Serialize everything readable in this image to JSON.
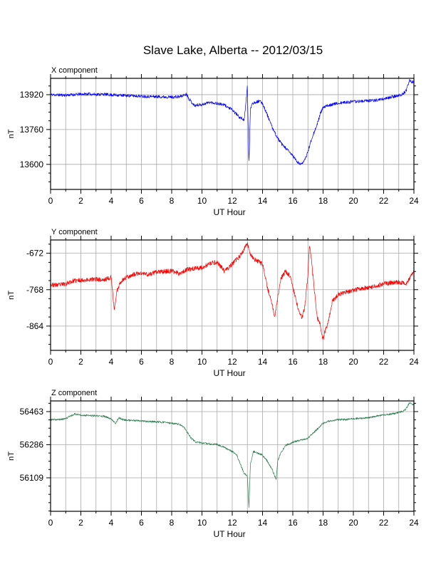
{
  "title": "Slave Lake, Alberta -- 2012/03/15",
  "chart_data": [
    {
      "type": "line",
      "panel_title": "X component",
      "xlabel": "UT Hour",
      "ylabel": "nT",
      "xlim": [
        0,
        24
      ],
      "ylim": [
        13485,
        13995
      ],
      "x_ticks": [
        0,
        2,
        4,
        6,
        8,
        10,
        12,
        14,
        16,
        18,
        20,
        22,
        24
      ],
      "y_ticks": [
        13600,
        13760,
        13920
      ],
      "grid": true,
      "color": "#0000ff",
      "noise": 7,
      "seed": 11,
      "x": [
        0,
        1,
        2,
        2.5,
        3,
        3.5,
        4,
        4.5,
        5,
        5.5,
        6,
        6.5,
        7,
        7.5,
        8,
        8.5,
        9,
        9.1,
        9.5,
        10,
        10.5,
        11,
        11.5,
        12,
        12.5,
        12.8,
        13,
        13.1,
        13.2,
        13.3,
        13.5,
        13.8,
        14,
        14.3,
        14.7,
        15,
        15.3,
        15.6,
        16,
        16.3,
        16.5,
        16.8,
        17,
        17.3,
        17.6,
        17.8,
        18,
        18.3,
        18.6,
        19,
        19.5,
        20,
        20.5,
        21,
        21.5,
        22,
        22.5,
        23,
        23.3,
        23.5,
        23.7,
        24
      ],
      "y": [
        13920,
        13918,
        13922,
        13923,
        13921,
        13922,
        13919,
        13918,
        13916,
        13915,
        13913,
        13912,
        13911,
        13910,
        13909,
        13910,
        13923,
        13905,
        13870,
        13875,
        13885,
        13880,
        13872,
        13850,
        13815,
        13805,
        13960,
        13600,
        13850,
        13880,
        13885,
        13890,
        13880,
        13830,
        13760,
        13720,
        13690,
        13670,
        13640,
        13610,
        13600,
        13620,
        13660,
        13730,
        13780,
        13830,
        13860,
        13870,
        13876,
        13880,
        13885,
        13888,
        13890,
        13892,
        13895,
        13900,
        13910,
        13915,
        13925,
        13940,
        13985,
        13975
      ]
    },
    {
      "type": "line",
      "panel_title": "Y component",
      "xlabel": "UT Hour",
      "ylabel": "nT",
      "xlim": [
        0,
        24
      ],
      "ylim": [
        -928,
        -637
      ],
      "x_ticks": [
        0,
        2,
        4,
        6,
        8,
        10,
        12,
        14,
        16,
        18,
        20,
        22,
        24
      ],
      "y_ticks": [
        -672,
        -768,
        -864
      ],
      "grid": true,
      "color": "#ff0000",
      "noise": 6,
      "seed": 23,
      "x": [
        0,
        0.5,
        1,
        1.5,
        2,
        2.5,
        3,
        3.5,
        4,
        4.2,
        4.4,
        4.6,
        5,
        5.5,
        6,
        6.5,
        7,
        7.5,
        8,
        8.5,
        9,
        9.5,
        10,
        10.5,
        11,
        11.5,
        12,
        12.5,
        12.8,
        13,
        13.2,
        13.5,
        14,
        14.3,
        14.6,
        14.8,
        15,
        15.2,
        15.5,
        15.8,
        16,
        16.3,
        16.6,
        16.8,
        17,
        17.1,
        17.2,
        17.4,
        17.6,
        17.8,
        18,
        18.1,
        18.3,
        18.6,
        19,
        19.5,
        20,
        20.5,
        21,
        21.5,
        22,
        22.5,
        23,
        23.5,
        24
      ],
      "y": [
        -755,
        -756,
        -752,
        -745,
        -743,
        -742,
        -740,
        -743,
        -735,
        -820,
        -770,
        -748,
        -735,
        -728,
        -725,
        -728,
        -722,
        -720,
        -719,
        -725,
        -715,
        -712,
        -710,
        -700,
        -695,
        -720,
        -700,
        -680,
        -660,
        -645,
        -675,
        -690,
        -700,
        -760,
        -800,
        -840,
        -790,
        -740,
        -720,
        -730,
        -760,
        -810,
        -845,
        -810,
        -730,
        -650,
        -680,
        -760,
        -840,
        -860,
        -900,
        -880,
        -860,
        -800,
        -780,
        -775,
        -770,
        -765,
        -762,
        -758,
        -752,
        -750,
        -748,
        -752,
        -715
      ]
    },
    {
      "type": "line",
      "panel_title": "Z component",
      "xlabel": "UT Hour",
      "ylabel": "nT",
      "xlim": [
        0,
        24
      ],
      "ylim": [
        55930,
        56520
      ],
      "x_ticks": [
        0,
        2,
        4,
        6,
        8,
        10,
        12,
        14,
        16,
        18,
        20,
        22,
        24
      ],
      "y_ticks": [
        56109,
        56286,
        56463
      ],
      "grid": true,
      "color": "#2e7d4f",
      "noise": 5,
      "seed": 37,
      "x": [
        0,
        0.5,
        1,
        1.3,
        1.6,
        2,
        2.5,
        3,
        3.5,
        4,
        4.3,
        4.5,
        4.8,
        5,
        5.5,
        6,
        6.5,
        7,
        7.5,
        8,
        8.5,
        8.8,
        9,
        9.3,
        9.6,
        10,
        10.5,
        11,
        11.5,
        12,
        12.3,
        12.6,
        12.8,
        13,
        13.1,
        13.2,
        13.4,
        13.7,
        14,
        14.3,
        14.6,
        14.9,
        15,
        15.2,
        15.5,
        16,
        16.5,
        17,
        17.5,
        18,
        18.3,
        18.6,
        19,
        19.5,
        20,
        20.5,
        21,
        21.5,
        22,
        22.5,
        23,
        23.3,
        23.5,
        23.7,
        24
      ],
      "y": [
        56420,
        56420,
        56425,
        56440,
        56450,
        56445,
        56442,
        56440,
        56438,
        56425,
        56400,
        56430,
        56420,
        56418,
        56415,
        56412,
        56410,
        56408,
        56406,
        56400,
        56395,
        56380,
        56355,
        56320,
        56300,
        56295,
        56290,
        56288,
        56270,
        56250,
        56230,
        56170,
        56130,
        56120,
        55950,
        56180,
        56250,
        56240,
        56230,
        56200,
        56160,
        56100,
        56200,
        56240,
        56280,
        56300,
        56310,
        56320,
        56360,
        56400,
        56410,
        56415,
        56420,
        56420,
        56425,
        56428,
        56430,
        56438,
        56445,
        56450,
        56458,
        56465,
        56480,
        56510,
        56500
      ]
    }
  ]
}
